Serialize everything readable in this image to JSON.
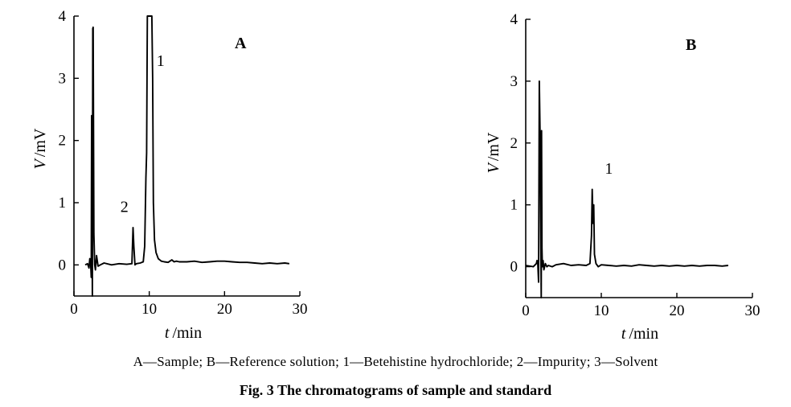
{
  "chart_data": [
    {
      "type": "line",
      "panel_label": "A",
      "xlabel_symbol": "t",
      "xlabel_unit": "/min",
      "ylabel_symbol": "V",
      "ylabel_unit": "/mV",
      "xlim": [
        0,
        30
      ],
      "ylim": [
        -0.5,
        4
      ],
      "xticks": [
        "0",
        "10",
        "20",
        "30"
      ],
      "yticks": [
        "0",
        "1",
        "2",
        "3",
        "4"
      ],
      "peak_labels": [
        {
          "text": "1",
          "x": 11.5,
          "y": 3.2
        },
        {
          "text": "2",
          "x": 6.7,
          "y": 0.85
        }
      ],
      "series": [
        {
          "x": [
            1.5,
            1.8,
            2.0,
            2.1,
            2.2,
            2.3,
            2.35,
            2.45,
            2.5,
            2.55,
            2.65,
            2.75,
            2.85,
            3.0,
            3.2,
            3.5,
            4.0,
            5.0,
            6.0,
            7.0,
            7.7,
            7.85,
            7.95,
            8.1,
            8.3,
            8.8,
            9.2,
            9.4,
            9.55,
            9.65,
            9.75,
            10.35,
            10.45,
            10.55,
            10.7,
            10.9,
            11.2,
            11.6,
            12.0,
            12.5,
            13.0,
            13.3,
            13.6,
            14.0,
            15.0,
            16.0,
            17.0,
            18.0,
            19.0,
            20.0,
            21.0,
            22.0,
            23.0,
            24.0,
            25.0,
            26.0,
            27.0,
            28.0,
            28.6
          ],
          "y": [
            0.0,
            0.02,
            -0.05,
            0.1,
            0.08,
            -0.2,
            2.4,
            -0.5,
            3.8,
            3.82,
            0.5,
            0.0,
            -0.08,
            0.15,
            -0.02,
            0.0,
            0.03,
            0.0,
            0.02,
            0.01,
            0.02,
            0.6,
            0.3,
            0.0,
            0.02,
            0.03,
            0.05,
            0.3,
            1.4,
            1.8,
            4.0,
            4.0,
            3.0,
            1.0,
            0.4,
            0.2,
            0.1,
            0.06,
            0.05,
            0.04,
            0.08,
            0.05,
            0.06,
            0.05,
            0.05,
            0.06,
            0.04,
            0.05,
            0.06,
            0.06,
            0.05,
            0.04,
            0.04,
            0.03,
            0.02,
            0.03,
            0.02,
            0.03,
            0.02
          ]
        }
      ]
    },
    {
      "type": "line",
      "panel_label": "B",
      "xlabel_symbol": "t",
      "xlabel_unit": "/min",
      "ylabel_symbol": "V",
      "ylabel_unit": "/mV",
      "xlim": [
        0,
        30
      ],
      "ylim": [
        -0.5,
        4
      ],
      "xticks": [
        "0",
        "10",
        "20",
        "30"
      ],
      "yticks": [
        "0",
        "1",
        "2",
        "3",
        "4"
      ],
      "peak_labels": [
        {
          "text": "1",
          "x": 11.0,
          "y": 1.5
        }
      ],
      "series": [
        {
          "x": [
            0.0,
            1.0,
            1.4,
            1.5,
            1.6,
            1.7,
            1.8,
            1.9,
            2.0,
            2.05,
            2.1,
            2.15,
            2.2,
            2.3,
            2.4,
            2.6,
            2.8,
            3.0,
            3.5,
            4.0,
            5.0,
            6.0,
            7.0,
            8.0,
            8.5,
            8.7,
            8.8,
            8.9,
            9.0,
            9.1,
            9.3,
            9.6,
            10.0,
            11.0,
            12.0,
            13.0,
            14.0,
            15.0,
            16.0,
            17.0,
            18.0,
            19.0,
            20.0,
            21.0,
            22.0,
            23.0,
            24.0,
            25.0,
            26.0,
            26.8
          ],
          "y": [
            0.02,
            0.0,
            0.05,
            0.1,
            0.05,
            -0.25,
            3.0,
            2.1,
            0.3,
            -0.5,
            2.2,
            0.3,
            0.0,
            0.1,
            -0.05,
            0.05,
            0.0,
            0.02,
            0.0,
            0.03,
            0.05,
            0.02,
            0.03,
            0.02,
            0.05,
            0.5,
            1.25,
            0.7,
            1.0,
            0.2,
            0.05,
            0.0,
            0.03,
            0.02,
            0.01,
            0.02,
            0.01,
            0.03,
            0.02,
            0.01,
            0.02,
            0.01,
            0.02,
            0.01,
            0.02,
            0.01,
            0.02,
            0.02,
            0.01,
            0.02
          ]
        }
      ]
    }
  ],
  "legend_text": "A—Sample; B—Reference solution; 1—Betehistine hydrochloride; 2—Impurity; 3—Solvent",
  "figure_title": "Fig. 3   The chromatograms of sample and standard"
}
